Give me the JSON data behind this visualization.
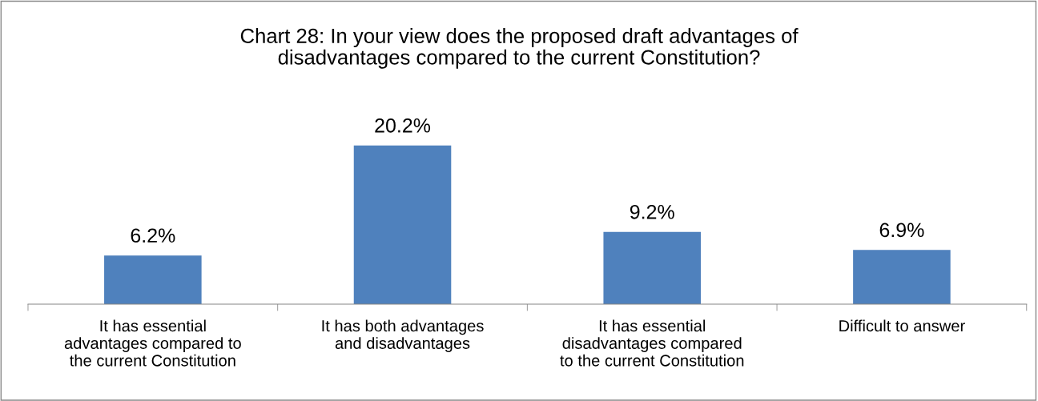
{
  "chart_data": {
    "type": "bar",
    "title": "Chart 28: In your view does the proposed draft advantages of\ndisadvantages compared to the current Constitution?",
    "categories": [
      "It has essential\nadvantages compared to\nthe current Constitution",
      "It has both advantages\nand disadvantages",
      "It has essential\ndisadvantages compared\nto the current Constitution",
      "Difficult to answer"
    ],
    "values": [
      6.2,
      20.2,
      9.2,
      6.9
    ],
    "value_labels": [
      "6.2%",
      "20.2%",
      "9.2%",
      "6.9%"
    ],
    "color": "#4f81bd",
    "grid": false,
    "legend": false
  }
}
